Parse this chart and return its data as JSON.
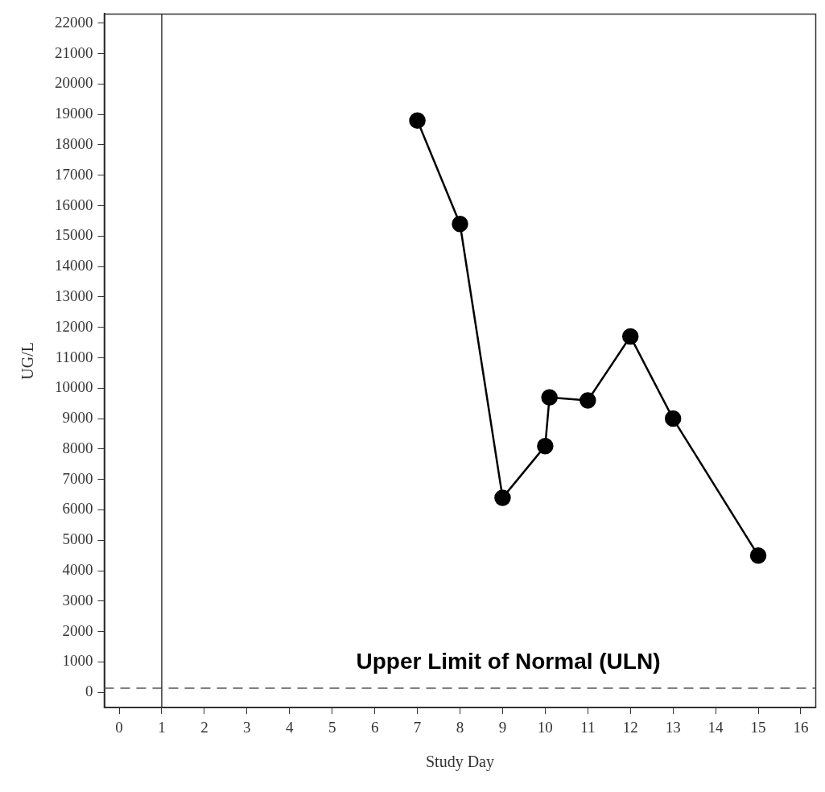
{
  "chart_data": {
    "type": "line",
    "xlabel": "Study Day",
    "ylabel": "UG/L",
    "x": [
      7,
      8,
      9,
      10,
      10.1,
      11,
      12,
      13,
      15
    ],
    "series": [
      {
        "color": "#000000",
        "values": [
          18800,
          15400,
          6400,
          8100,
          9700,
          9600,
          11700,
          9000,
          4500
        ]
      }
    ],
    "xlim": [
      -0.35,
      16.35
    ],
    "xticks": [
      0,
      1,
      2,
      3,
      4,
      5,
      6,
      7,
      8,
      9,
      10,
      11,
      12,
      13,
      14,
      15,
      16
    ],
    "ylim": [
      -500,
      22300
    ],
    "yticks": [
      0,
      1000,
      2000,
      3000,
      4000,
      5000,
      6000,
      7000,
      8000,
      9000,
      10000,
      11000,
      12000,
      13000,
      14000,
      15000,
      16000,
      17000,
      18000,
      19000,
      20000,
      21000,
      22000
    ],
    "ref_lines": [
      {
        "axis": "y",
        "value": 140,
        "label": "Upper Limit of Normal (ULN)",
        "line_style": "dashed",
        "color": "#555555"
      },
      {
        "axis": "x",
        "value": 1,
        "line_style": "solid",
        "color": "#333333"
      }
    ],
    "grid": false,
    "legend": false,
    "marker": "circle",
    "line_style": "solid"
  }
}
